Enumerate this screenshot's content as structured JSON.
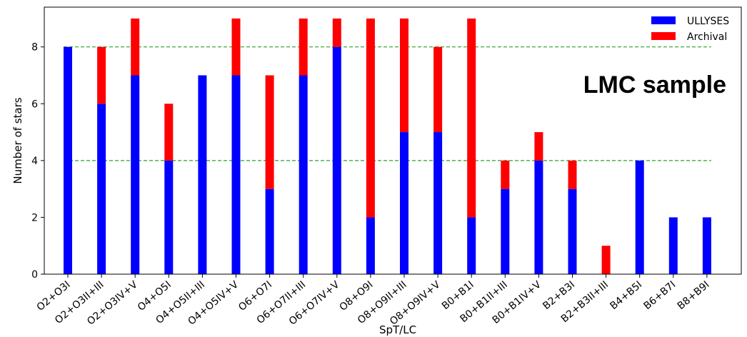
{
  "chart_data": {
    "type": "bar",
    "stacked": true,
    "title": "",
    "xlabel": "SpT/LC",
    "ylabel": "Number of stars",
    "ylim": [
      0,
      9.4
    ],
    "yticks": [
      0,
      2,
      4,
      6,
      8
    ],
    "grid": false,
    "reference_lines": [
      4,
      8
    ],
    "legend_position": "top-right",
    "annotation": "LMC sample",
    "categories": [
      "O2+O3I",
      "O2+O3II+III",
      "O2+O3IV+V",
      "O4+O5I",
      "O4+O5II+III",
      "O4+O5IV+V",
      "O6+O7I",
      "O6+O7II+III",
      "O6+O7IV+V",
      "O8+O9I",
      "O8+O9II+III",
      "O8+O9IV+V",
      "B0+B1I",
      "B0+B1II+III",
      "B0+B1IV+V",
      "B2+B3I",
      "B2+B3II+III",
      "B4+B5I",
      "B6+B7I",
      "B8+B9I"
    ],
    "series": [
      {
        "name": "ULLYSES",
        "color": "#0000ff",
        "values": [
          8,
          6,
          7,
          4,
          7,
          7,
          3,
          7,
          8,
          2,
          5,
          5,
          2,
          3,
          4,
          3,
          0,
          4,
          2,
          2
        ]
      },
      {
        "name": "Archival",
        "color": "#ff0000",
        "values": [
          0,
          2,
          2,
          2,
          0,
          2,
          4,
          2,
          1,
          7,
          4,
          3,
          7,
          1,
          1,
          1,
          1,
          0,
          0,
          0
        ]
      }
    ]
  }
}
